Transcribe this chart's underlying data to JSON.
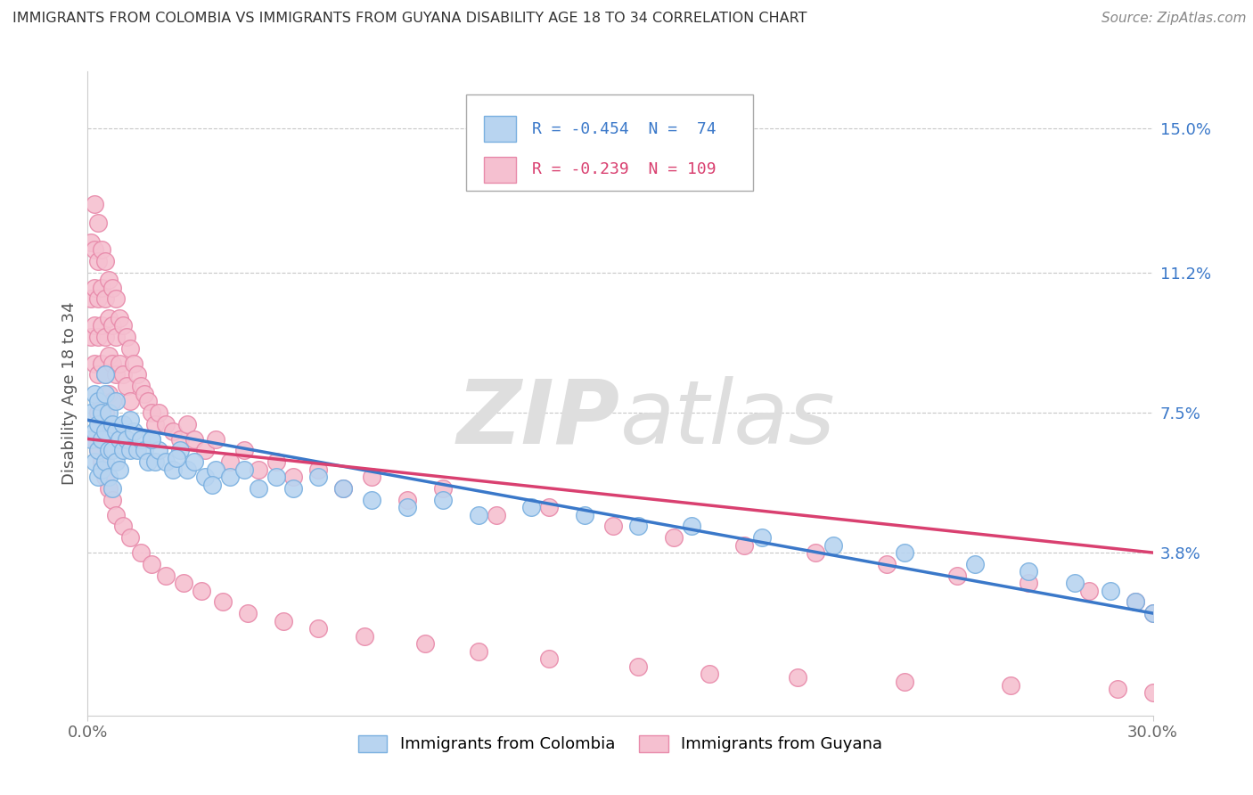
{
  "title": "IMMIGRANTS FROM COLOMBIA VS IMMIGRANTS FROM GUYANA DISABILITY AGE 18 TO 34 CORRELATION CHART",
  "source": "Source: ZipAtlas.com",
  "ylabel": "Disability Age 18 to 34",
  "watermark": "ZIPatlas",
  "xlim": [
    0.0,
    0.3
  ],
  "ylim": [
    -0.005,
    0.165
  ],
  "ytick_labels": [
    "3.8%",
    "7.5%",
    "11.2%",
    "15.0%"
  ],
  "ytick_values": [
    0.038,
    0.075,
    0.112,
    0.15
  ],
  "series": [
    {
      "name": "Immigrants from Colombia",
      "color": "#b8d4f0",
      "edge_color": "#7ab0e0",
      "R": -0.454,
      "N": 74,
      "line_color": "#3a78c9"
    },
    {
      "name": "Immigrants from Guyana",
      "color": "#f5c0d0",
      "edge_color": "#e88aaa",
      "R": -0.239,
      "N": 109,
      "line_color": "#d94070"
    }
  ],
  "colombia_x": [
    0.001,
    0.001,
    0.002,
    0.002,
    0.002,
    0.003,
    0.003,
    0.003,
    0.003,
    0.004,
    0.004,
    0.004,
    0.005,
    0.005,
    0.005,
    0.006,
    0.006,
    0.006,
    0.007,
    0.007,
    0.007,
    0.008,
    0.008,
    0.009,
    0.009,
    0.01,
    0.01,
    0.011,
    0.012,
    0.013,
    0.014,
    0.015,
    0.016,
    0.017,
    0.018,
    0.019,
    0.02,
    0.022,
    0.024,
    0.026,
    0.028,
    0.03,
    0.033,
    0.036,
    0.04,
    0.044,
    0.048,
    0.053,
    0.058,
    0.065,
    0.072,
    0.08,
    0.09,
    0.1,
    0.11,
    0.125,
    0.14,
    0.155,
    0.17,
    0.19,
    0.21,
    0.23,
    0.25,
    0.265,
    0.278,
    0.288,
    0.295,
    0.3,
    0.005,
    0.008,
    0.012,
    0.018,
    0.025,
    0.035
  ],
  "colombia_y": [
    0.075,
    0.068,
    0.08,
    0.07,
    0.062,
    0.078,
    0.065,
    0.072,
    0.058,
    0.075,
    0.068,
    0.06,
    0.08,
    0.07,
    0.062,
    0.075,
    0.065,
    0.058,
    0.072,
    0.065,
    0.055,
    0.07,
    0.062,
    0.068,
    0.06,
    0.072,
    0.065,
    0.068,
    0.065,
    0.07,
    0.065,
    0.068,
    0.065,
    0.062,
    0.068,
    0.062,
    0.065,
    0.062,
    0.06,
    0.065,
    0.06,
    0.062,
    0.058,
    0.06,
    0.058,
    0.06,
    0.055,
    0.058,
    0.055,
    0.058,
    0.055,
    0.052,
    0.05,
    0.052,
    0.048,
    0.05,
    0.048,
    0.045,
    0.045,
    0.042,
    0.04,
    0.038,
    0.035,
    0.033,
    0.03,
    0.028,
    0.025,
    0.022,
    0.085,
    0.078,
    0.073,
    0.068,
    0.063,
    0.056
  ],
  "guyana_x": [
    0.001,
    0.001,
    0.001,
    0.002,
    0.002,
    0.002,
    0.002,
    0.002,
    0.003,
    0.003,
    0.003,
    0.003,
    0.003,
    0.003,
    0.004,
    0.004,
    0.004,
    0.004,
    0.004,
    0.005,
    0.005,
    0.005,
    0.005,
    0.005,
    0.006,
    0.006,
    0.006,
    0.006,
    0.007,
    0.007,
    0.007,
    0.007,
    0.008,
    0.008,
    0.008,
    0.009,
    0.009,
    0.01,
    0.01,
    0.011,
    0.011,
    0.012,
    0.012,
    0.013,
    0.014,
    0.015,
    0.016,
    0.017,
    0.018,
    0.019,
    0.02,
    0.022,
    0.024,
    0.026,
    0.028,
    0.03,
    0.033,
    0.036,
    0.04,
    0.044,
    0.048,
    0.053,
    0.058,
    0.065,
    0.072,
    0.08,
    0.09,
    0.1,
    0.115,
    0.13,
    0.148,
    0.165,
    0.185,
    0.205,
    0.225,
    0.245,
    0.265,
    0.282,
    0.295,
    0.3,
    0.002,
    0.003,
    0.004,
    0.005,
    0.006,
    0.007,
    0.008,
    0.01,
    0.012,
    0.015,
    0.018,
    0.022,
    0.027,
    0.032,
    0.038,
    0.045,
    0.055,
    0.065,
    0.078,
    0.095,
    0.11,
    0.13,
    0.155,
    0.175,
    0.2,
    0.23,
    0.26,
    0.29,
    0.3
  ],
  "guyana_y": [
    0.12,
    0.105,
    0.095,
    0.13,
    0.118,
    0.108,
    0.098,
    0.088,
    0.125,
    0.115,
    0.105,
    0.095,
    0.085,
    0.075,
    0.118,
    0.108,
    0.098,
    0.088,
    0.078,
    0.115,
    0.105,
    0.095,
    0.085,
    0.075,
    0.11,
    0.1,
    0.09,
    0.08,
    0.108,
    0.098,
    0.088,
    0.078,
    0.105,
    0.095,
    0.085,
    0.1,
    0.088,
    0.098,
    0.085,
    0.095,
    0.082,
    0.092,
    0.078,
    0.088,
    0.085,
    0.082,
    0.08,
    0.078,
    0.075,
    0.072,
    0.075,
    0.072,
    0.07,
    0.068,
    0.072,
    0.068,
    0.065,
    0.068,
    0.062,
    0.065,
    0.06,
    0.062,
    0.058,
    0.06,
    0.055,
    0.058,
    0.052,
    0.055,
    0.048,
    0.05,
    0.045,
    0.042,
    0.04,
    0.038,
    0.035,
    0.032,
    0.03,
    0.028,
    0.025,
    0.022,
    0.068,
    0.065,
    0.062,
    0.058,
    0.055,
    0.052,
    0.048,
    0.045,
    0.042,
    0.038,
    0.035,
    0.032,
    0.03,
    0.028,
    0.025,
    0.022,
    0.02,
    0.018,
    0.016,
    0.014,
    0.012,
    0.01,
    0.008,
    0.006,
    0.005,
    0.004,
    0.003,
    0.002,
    0.001
  ]
}
